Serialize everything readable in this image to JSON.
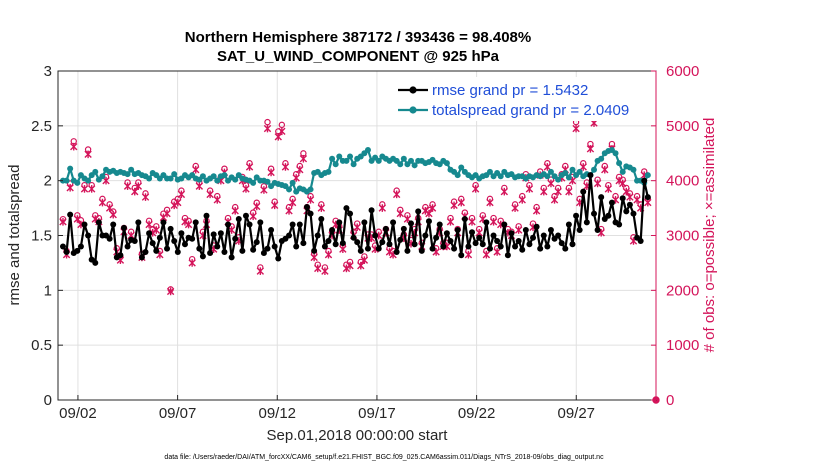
{
  "chart_data": {
    "type": "line",
    "title_line1": "Northern Hemisphere 387172 / 393436 = 98.408%",
    "title_line2": "SAT_U_WIND_COMPONENT @ 925 hPa",
    "xlabel": "Sep.01,2018 00:00:00 start",
    "ylabel_left": "rmse and totalspread",
    "ylabel_right": "# of obs: o=possible; ×=assimilated",
    "footnote": "data file: /Users/raeder/DAI/ATM_forcXX/CAM6_setup/f.e21.FHIST_BGC.f09_025.CAM6assim.011/Diags_NTrS_2018-09/obs_diag_output.nc",
    "x_ticks": [
      "09/02",
      "09/07",
      "09/12",
      "09/17",
      "09/22",
      "09/27"
    ],
    "x_tick_days": [
      2,
      7,
      12,
      17,
      22,
      27
    ],
    "xlim_days": [
      1,
      31
    ],
    "y_left_ticks": [
      "0",
      "0.5",
      "1",
      "1.5",
      "2",
      "2.5",
      "3"
    ],
    "ylim_left": [
      0,
      3
    ],
    "y_right_ticks": [
      "0",
      "1000",
      "2000",
      "3000",
      "4000",
      "5000",
      "6000"
    ],
    "ylim_right": [
      0,
      6000
    ],
    "grid": true,
    "legend_position": "top-right",
    "colors": {
      "rmse": "#000000",
      "spread": "#16898f",
      "obs": "#d4145a",
      "legend_text": "#1f4ed8",
      "grid": "#e0e0e0"
    },
    "series": [
      {
        "name": "rmse grand pr = 1.5432",
        "axis": "left",
        "values": [
          1.4,
          1.35,
          1.69,
          1.34,
          1.36,
          1.4,
          1.6,
          1.5,
          1.28,
          1.25,
          1.62,
          1.5,
          1.5,
          1.47,
          1.6,
          1.3,
          1.32,
          1.57,
          1.4,
          1.46,
          1.45,
          1.62,
          1.3,
          1.35,
          1.52,
          1.43,
          1.36,
          1.48,
          1.62,
          1.38,
          1.56,
          1.45,
          1.35,
          1.52,
          1.42,
          1.48,
          1.47,
          1.62,
          1.38,
          1.31,
          1.68,
          1.34,
          1.51,
          1.4,
          1.52,
          1.35,
          1.6,
          1.3,
          1.47,
          1.65,
          1.36,
          1.68,
          1.6,
          1.37,
          1.44,
          1.62,
          1.34,
          1.38,
          1.55,
          1.4,
          1.29,
          1.45,
          1.47,
          1.5,
          1.6,
          1.4,
          1.6,
          1.43,
          1.76,
          1.7,
          1.36,
          1.5,
          1.65,
          1.4,
          1.45,
          1.55,
          1.42,
          1.62,
          1.43,
          1.75,
          1.7,
          1.48,
          1.44,
          1.36,
          1.62,
          1.38,
          1.73,
          1.5,
          1.38,
          1.44,
          1.56,
          1.42,
          1.62,
          1.35,
          1.46,
          1.56,
          1.36,
          1.61,
          1.42,
          1.72,
          1.36,
          1.5,
          1.63,
          1.38,
          1.48,
          1.6,
          1.4,
          1.52,
          1.45,
          1.38,
          1.55,
          1.32,
          1.65,
          1.4,
          1.53,
          1.43,
          1.48,
          1.42,
          1.62,
          1.38,
          1.5,
          1.45,
          1.4,
          1.6,
          1.32,
          1.52,
          1.4,
          1.45,
          1.37,
          1.55,
          1.42,
          1.48,
          1.58,
          1.38,
          1.5,
          1.4,
          1.55,
          1.47,
          1.5,
          1.43,
          1.38,
          1.6,
          1.42,
          1.68,
          1.55,
          1.9,
          1.62,
          2.05,
          1.7,
          1.55,
          1.85,
          1.65,
          1.68,
          1.8,
          1.62,
          1.6,
          1.84,
          1.72,
          1.78,
          1.7,
          1.48,
          1.45,
          2.0,
          1.85
        ]
      },
      {
        "name": "totalspread grand pr = 2.0409",
        "axis": "left",
        "values": [
          2.0,
          2.0,
          2.11,
          2.0,
          1.98,
          2.05,
          2.02,
          2.0,
          2.05,
          2.08,
          2.01,
          2.04,
          2.1,
          2.08,
          2.09,
          2.07,
          2.08,
          2.07,
          2.06,
          2.1,
          2.06,
          2.07,
          2.05,
          2.04,
          2.02,
          2.07,
          2.05,
          2.02,
          2.05,
          2.02,
          2.02,
          2.06,
          2.01,
          2.02,
          2.05,
          2.03,
          2.05,
          2.02,
          2.01,
          2.04,
          2.0,
          2.02,
          2.04,
          2.0,
          2.04,
          2.05,
          2.0,
          2.03,
          2.01,
          2.05,
          2.02,
          2.01,
          2.0,
          1.98,
          2.03,
          2.0,
          2.0,
          1.99,
          1.95,
          1.98,
          1.97,
          1.96,
          1.95,
          1.92,
          1.98,
          1.9,
          1.93,
          1.92,
          1.9,
          1.92,
          2.07,
          2.08,
          2.05,
          2.07,
          2.08,
          2.2,
          2.15,
          2.22,
          2.18,
          2.18,
          2.22,
          2.15,
          2.2,
          2.22,
          2.25,
          2.28,
          2.18,
          2.21,
          2.18,
          2.22,
          2.2,
          2.18,
          2.2,
          2.18,
          2.15,
          2.2,
          2.15,
          2.18,
          2.14,
          2.18,
          2.18,
          2.16,
          2.17,
          2.19,
          2.16,
          2.15,
          2.18,
          2.16,
          2.1,
          2.08,
          2.05,
          2.12,
          2.08,
          2.05,
          2.03,
          2.05,
          2.02,
          2.04,
          2.05,
          2.08,
          2.04,
          2.07,
          2.04,
          2.08,
          2.05,
          2.06,
          2.03,
          2.04,
          2.04,
          2.02,
          2.04,
          2.03,
          2.05,
          2.04,
          2.06,
          2.04,
          2.08,
          2.04,
          2.01,
          2.05,
          2.07,
          2.03,
          2.1,
          2.05,
          2.08,
          2.04,
          2.06,
          2.05,
          2.1,
          2.18,
          2.2,
          2.25,
          2.27,
          2.28,
          2.25,
          2.16,
          2.08,
          2.13,
          2.12,
          2.1,
          2.0,
          2.0,
          1.98,
          2.05
        ]
      },
      {
        "name": "# obs possible",
        "axis": "right",
        "marker": "circle",
        "values": [
          3280,
          2700,
          3930,
          4700,
          3350,
          3260,
          3900,
          4550,
          3900,
          3350,
          3300,
          3650,
          4050,
          3550,
          3420,
          2750,
          2590,
          3120,
          3950,
          3050,
          3850,
          3950,
          2650,
          3750,
          3250,
          3100,
          3150,
          2700,
          3380,
          3450,
          2000,
          3600,
          3650,
          3800,
          3300,
          3250,
          2550,
          4250,
          3950,
          3050,
          3250,
          3800,
          2800,
          3700,
          4050,
          4200,
          3300,
          3150,
          3500,
          2950,
          4050,
          3900,
          4300,
          3400,
          3580,
          2400,
          3880,
          5050,
          4200,
          3600,
          4880,
          5000,
          4300,
          3500,
          3650,
          4100,
          4250,
          4480,
          3500,
          3700,
          2650,
          2450,
          3550,
          2400,
          2700,
          3050,
          3250,
          3150,
          2800,
          2450,
          2500,
          3050,
          3200,
          2500,
          2600,
          3000,
          3000,
          2800,
          3050,
          3550,
          3100,
          2750,
          2700,
          3800,
          3450,
          3000,
          3350,
          2900,
          3100,
          3300,
          2850,
          3500,
          3450,
          3550,
          2750,
          3100,
          2850,
          2850,
          3300,
          3600,
          3100,
          3650,
          3400,
          2700,
          3300,
          3900,
          3100,
          3350,
          2700,
          3650,
          3300,
          2750,
          3250,
          3850,
          3100,
          3050,
          3550,
          3150,
          3700,
          4100,
          3900,
          3200,
          3500,
          4150,
          3850,
          4300,
          4000,
          3700,
          3850,
          4100,
          4250,
          3850,
          4050,
          5050,
          3650,
          4300,
          3950,
          4650,
          5150,
          4000,
          3100,
          4250,
          3900,
          4650,
          3700,
          4050,
          4000,
          3850,
          3750,
          2950,
          3700,
          3550,
          4150,
          3650
        ]
      },
      {
        "name": "# obs assimilated",
        "axis": "right",
        "marker": "cross",
        "values": [
          3250,
          2650,
          3870,
          4620,
          3300,
          3200,
          3850,
          4480,
          3850,
          3300,
          3250,
          3600,
          4000,
          3500,
          3380,
          2700,
          2550,
          3070,
          3900,
          3000,
          3800,
          3900,
          2600,
          3700,
          3200,
          3050,
          3100,
          2650,
          3330,
          3400,
          1980,
          3550,
          3600,
          3750,
          3250,
          3200,
          2500,
          4200,
          3900,
          3000,
          3200,
          3750,
          2750,
          3650,
          4000,
          4150,
          3250,
          3100,
          3450,
          2900,
          4000,
          3850,
          4250,
          3350,
          3530,
          2350,
          3830,
          4950,
          4150,
          3550,
          4800,
          4900,
          4250,
          3450,
          3600,
          4050,
          4200,
          4400,
          3450,
          3650,
          2600,
          2400,
          3500,
          2350,
          2650,
          3000,
          3200,
          3100,
          2750,
          2400,
          2450,
          3000,
          3150,
          2450,
          2550,
          2950,
          2950,
          2750,
          3000,
          3500,
          3050,
          2700,
          2650,
          3750,
          3400,
          2950,
          3300,
          2850,
          3050,
          3250,
          2800,
          3450,
          3400,
          3500,
          2700,
          3050,
          2800,
          2800,
          3250,
          3550,
          3050,
          3600,
          3350,
          2650,
          3250,
          3850,
          3050,
          3300,
          2650,
          3600,
          3250,
          2700,
          3200,
          3800,
          3050,
          3000,
          3500,
          3100,
          3650,
          4050,
          3850,
          3150,
          3450,
          4100,
          3800,
          4250,
          3950,
          3650,
          3800,
          4050,
          4200,
          3800,
          4000,
          4950,
          3600,
          4250,
          3900,
          4580,
          5050,
          3950,
          3050,
          4200,
          3850,
          4580,
          3650,
          4000,
          3950,
          3800,
          3700,
          2900,
          3650,
          3500,
          4100,
          3600
        ]
      }
    ],
    "last_obs_point": {
      "day": 31.0,
      "value": 0
    }
  }
}
